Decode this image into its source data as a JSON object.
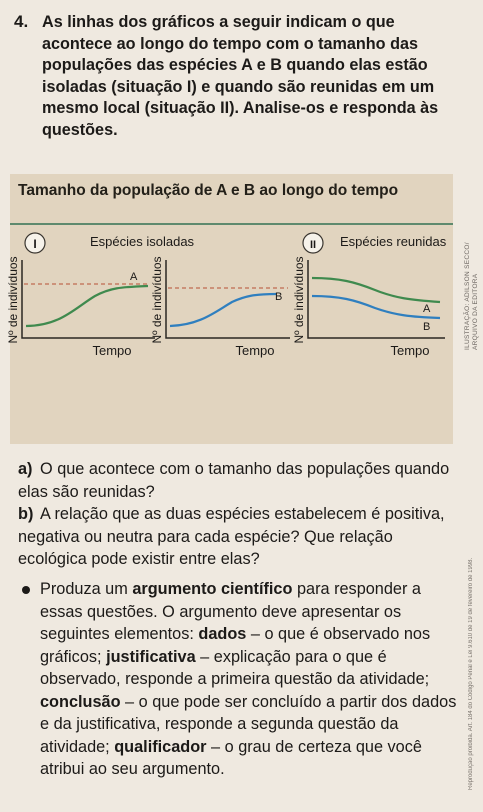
{
  "question": {
    "number": "4.",
    "text": "As linhas dos gráficos a seguir indicam o que acontece ao longo do tempo com o tamanho das populações das espécies A e B quando elas estão isoladas (situação I) e quando são reunidas em um mesmo local (situação II). Analise-os e responda às questões."
  },
  "panel": {
    "title": "Tamanho da população de A e B ao longo do tempo",
    "situation_I": {
      "badge": "I",
      "label": "Espécies isoladas"
    },
    "situation_II": {
      "badge": "II",
      "label": "Espécies reunidas"
    },
    "ylabel": "Nº de indivíduos",
    "xlabel": "Tempo",
    "colors": {
      "species_A": "#3f8a4e",
      "species_B": "#2f7fbf",
      "reference": "#c06a52"
    }
  },
  "chart_data": [
    {
      "type": "line",
      "x": [
        0,
        1,
        2,
        3,
        4,
        5,
        6
      ],
      "series": [
        {
          "name": "A",
          "values": [
            0.1,
            0.12,
            0.25,
            0.5,
            0.68,
            0.72,
            0.73
          ]
        }
      ],
      "reference_line": 0.74,
      "xlabel": "Tempo",
      "ylabel": "Nº de indivíduos"
    },
    {
      "type": "line",
      "x": [
        0,
        1,
        2,
        3,
        4,
        5,
        6
      ],
      "series": [
        {
          "name": "B",
          "values": [
            0.1,
            0.14,
            0.3,
            0.5,
            0.6,
            0.62,
            0.62
          ]
        }
      ],
      "reference_line": 0.62,
      "xlabel": "Tempo",
      "ylabel": "Nº de indivíduos"
    },
    {
      "type": "line",
      "x": [
        0,
        1,
        2,
        3,
        4,
        5,
        6
      ],
      "series": [
        {
          "name": "A",
          "values": [
            0.88,
            0.86,
            0.8,
            0.72,
            0.62,
            0.56,
            0.54
          ]
        },
        {
          "name": "B",
          "values": [
            0.7,
            0.7,
            0.65,
            0.56,
            0.47,
            0.43,
            0.42
          ]
        }
      ],
      "xlabel": "Tempo",
      "ylabel": "Nº de indivíduos"
    }
  ],
  "credit": "ILUSTRAÇÃO: ADILSON SECCO/ ARQUIVO DA EDITORA",
  "legal": "Reprodução proibida. Art. 184 do Código Penal e Lei 9.610 de 19 de fevereiro de 1998.",
  "items": {
    "a": {
      "letter": "a)",
      "text": "O que acontece com o tamanho das populações quando elas são reunidas?"
    },
    "b": {
      "letter": "b)",
      "text1": "A relação que as duas espécies estabelecem é positiva, negativa ou neutra para cada espécie?",
      "text2": "Que relação ecológica pode existir entre elas?"
    }
  },
  "bullet": {
    "p1": "Produza um ",
    "b1": "argumento científico",
    "p2": " para responder a essas questões. O argumento deve apresentar os seguintes elementos: ",
    "b2": "dados",
    "p3": " – o que é observado nos gráficos; ",
    "b3": "justificativa",
    "p4": " – explicação para o que é observado, responde a primeira questão da atividade; ",
    "b4": "conclusão",
    "p5": " – o que pode ser concluído a partir dos dados e da justificativa, responde a segunda questão da atividade; ",
    "b5": "qualificador",
    "p6": " – o grau de certeza que você atribui ao seu argumento."
  }
}
